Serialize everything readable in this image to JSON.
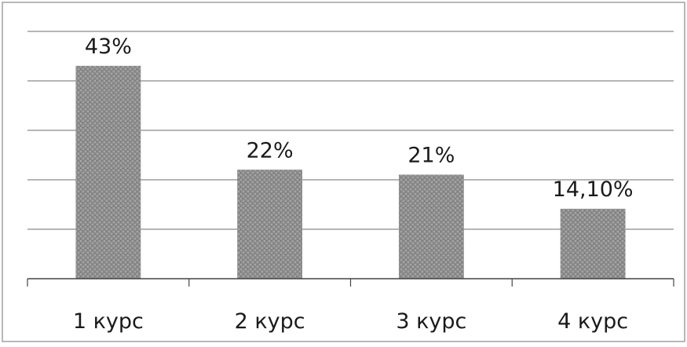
{
  "colors": {
    "bar": "#8c8c8c",
    "grid": "#8a8a8a",
    "axis": "#444444",
    "frame": "#a0a0a0",
    "text": "#1a1a1a"
  },
  "chart_data": {
    "type": "bar",
    "categories": [
      "1 курс",
      "2 курс",
      "3 курс",
      "4 курс"
    ],
    "values": [
      43,
      22,
      21,
      14.1
    ],
    "data_labels": [
      "43%",
      "22%",
      "21%",
      "14,10%"
    ],
    "title": "",
    "xlabel": "",
    "ylabel": "",
    "ylim": [
      0,
      50
    ],
    "grid": true,
    "legend": "none"
  }
}
